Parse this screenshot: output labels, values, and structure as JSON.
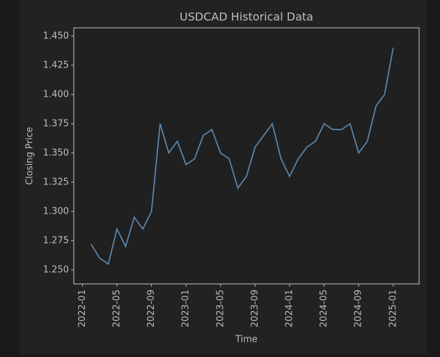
{
  "chart_data": {
    "type": "line",
    "title": "USDCAD Historical Data",
    "x_label": "Time",
    "y_label": "Closing Price",
    "x": [
      "2022-02",
      "2022-03",
      "2022-04",
      "2022-05",
      "2022-06",
      "2022-07",
      "2022-08",
      "2022-09",
      "2022-10",
      "2022-11",
      "2022-12",
      "2023-01",
      "2023-02",
      "2023-03",
      "2023-04",
      "2023-05",
      "2023-06",
      "2023-07",
      "2023-08",
      "2023-09",
      "2023-10",
      "2023-11",
      "2023-12",
      "2024-01",
      "2024-02",
      "2024-03",
      "2024-04",
      "2024-05",
      "2024-06",
      "2024-07",
      "2024-08",
      "2024-09",
      "2024-10",
      "2024-11",
      "2024-12",
      "2025-01"
    ],
    "series": [
      {
        "name": "USDCAD",
        "color": "#5b84a8",
        "values": [
          1.272,
          1.26,
          1.255,
          1.285,
          1.27,
          1.295,
          1.285,
          1.3,
          1.375,
          1.35,
          1.36,
          1.34,
          1.345,
          1.365,
          1.37,
          1.35,
          1.345,
          1.32,
          1.33,
          1.355,
          1.365,
          1.375,
          1.345,
          1.33,
          1.345,
          1.355,
          1.36,
          1.375,
          1.37,
          1.37,
          1.375,
          1.35,
          1.36,
          1.39,
          1.4,
          1.44
        ]
      }
    ],
    "xlim": [
      "2021-12",
      "2025-04"
    ],
    "xticks": [
      "2022-01",
      "2022-05",
      "2022-09",
      "2023-01",
      "2023-05",
      "2023-09",
      "2024-01",
      "2024-05",
      "2024-09",
      "2025-01"
    ],
    "ylim": [
      1.238,
      1.457
    ],
    "yticks": [
      {
        "value": 1.25,
        "label": "1.250"
      },
      {
        "value": 1.275,
        "label": "1.275"
      },
      {
        "value": 1.3,
        "label": "1.300"
      },
      {
        "value": 1.325,
        "label": "1.325"
      },
      {
        "value": 1.35,
        "label": "1.350"
      },
      {
        "value": 1.375,
        "label": "1.375"
      },
      {
        "value": 1.4,
        "label": "1.400"
      },
      {
        "value": 1.425,
        "label": "1.425"
      },
      {
        "value": 1.45,
        "label": "1.450"
      }
    ],
    "grid": false
  }
}
